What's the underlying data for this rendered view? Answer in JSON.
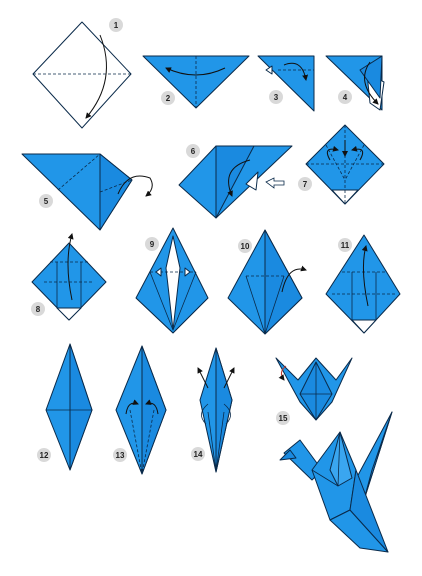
{
  "diagram": {
    "steps": [
      {
        "number": "1"
      },
      {
        "number": "2"
      },
      {
        "number": "3"
      },
      {
        "number": "4"
      },
      {
        "number": "5"
      },
      {
        "number": "6"
      },
      {
        "number": "7"
      },
      {
        "number": "8"
      },
      {
        "number": "9"
      },
      {
        "number": "10"
      },
      {
        "number": "11"
      },
      {
        "number": "12"
      },
      {
        "number": "13"
      },
      {
        "number": "14"
      },
      {
        "number": "15"
      }
    ],
    "colors": {
      "paper_front": "#2196e8",
      "paper_back": "#ffffff",
      "outline": "#0a2a4a",
      "badge": "#d9d9d9"
    }
  }
}
